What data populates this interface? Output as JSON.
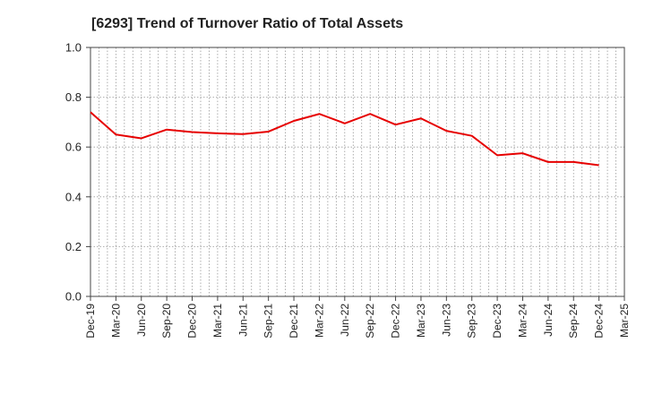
{
  "chart_data": {
    "type": "line",
    "title": "[6293]  Trend of Turnover Ratio of Total Assets",
    "xlabel": "",
    "ylabel": "",
    "ylim": [
      0.0,
      1.0
    ],
    "y_ticks": [
      "0.0",
      "0.2",
      "0.4",
      "0.6",
      "0.8",
      "1.0"
    ],
    "x_tick_labels": [
      "Dec-19",
      "Mar-20",
      "Jun-20",
      "Sep-20",
      "Dec-20",
      "Mar-21",
      "Jun-21",
      "Sep-21",
      "Dec-21",
      "Mar-22",
      "Jun-22",
      "Sep-22",
      "Dec-22",
      "Mar-23",
      "Jun-23",
      "Sep-23",
      "Dec-23",
      "Mar-24",
      "Jun-24",
      "Sep-24",
      "Dec-24",
      "Mar-25"
    ],
    "grid": true,
    "legend": "none",
    "series": [
      {
        "color": "#e60000",
        "x": [
          "Dec-19",
          "Mar-20",
          "Jun-20",
          "Sep-20",
          "Dec-20",
          "Mar-21",
          "Jun-21",
          "Sep-21",
          "Dec-21",
          "Mar-22",
          "Jun-22",
          "Sep-22",
          "Dec-22",
          "Mar-23",
          "Jun-23",
          "Sep-23",
          "Dec-23",
          "Mar-24",
          "Jun-24",
          "Sep-24",
          "Dec-24"
        ],
        "values": [
          0.74,
          0.65,
          0.635,
          0.67,
          0.66,
          0.655,
          0.652,
          0.662,
          0.705,
          0.733,
          0.695,
          0.733,
          0.69,
          0.715,
          0.665,
          0.645,
          0.567,
          0.575,
          0.54,
          0.54,
          0.527
        ]
      }
    ]
  }
}
